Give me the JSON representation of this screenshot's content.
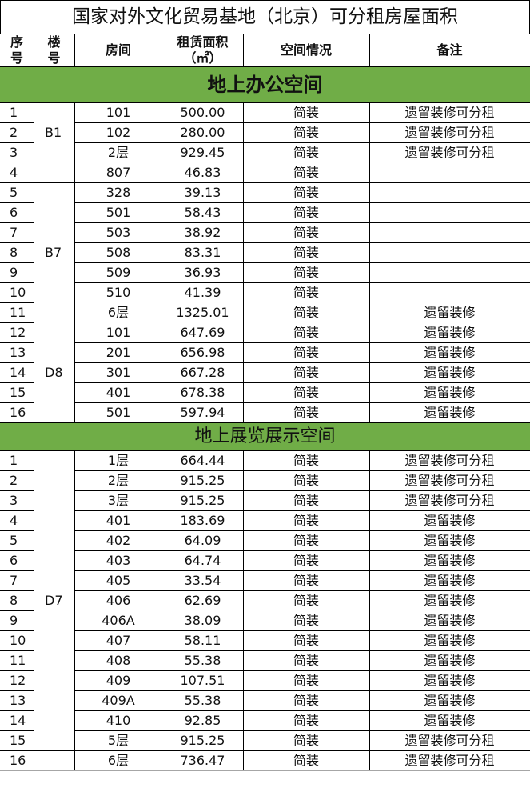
{
  "title": "国家对外文化贸易基地（北京）可分租房屋面积",
  "headers": {
    "seq": "序\n号",
    "building": "楼\n号",
    "room": "房间",
    "area": "租赁面积\n（㎡）",
    "space": "空间情况",
    "remark": "备注"
  },
  "sections": [
    {
      "name": "地上办公空间",
      "rows": [
        [
          "1",
          "",
          "101",
          "500.00",
          "简装",
          "遗留装修可分租"
        ],
        [
          "2",
          "B1",
          "102",
          "280.00",
          "简装",
          "遗留装修可分租"
        ],
        [
          "3",
          "",
          "2层",
          "929.45",
          "简装",
          "遗留装修可分租"
        ],
        [
          "4",
          "",
          "807",
          "46.83",
          "简装",
          ""
        ],
        [
          "5",
          "",
          "328",
          "39.13",
          "简装",
          ""
        ],
        [
          "6",
          "",
          "501",
          "58.43",
          "简装",
          ""
        ],
        [
          "7",
          "",
          "503",
          "38.92",
          "简装",
          ""
        ],
        [
          "8",
          "B7",
          "508",
          "83.31",
          "简装",
          ""
        ],
        [
          "9",
          "",
          "509",
          "36.93",
          "简装",
          ""
        ],
        [
          "10",
          "",
          "510",
          "41.39",
          "简装",
          ""
        ],
        [
          "11",
          "",
          "6层",
          "1325.01",
          "简装",
          "遗留装修"
        ],
        [
          "12",
          "",
          "101",
          "647.69",
          "简装",
          "遗留装修"
        ],
        [
          "13",
          "",
          "201",
          "656.98",
          "简装",
          "遗留装修"
        ],
        [
          "14",
          "D8",
          "301",
          "667.28",
          "简装",
          "遗留装修"
        ],
        [
          "15",
          "",
          "401",
          "678.38",
          "简装",
          "遗留装修"
        ],
        [
          "16",
          "",
          "501",
          "597.94",
          "简装",
          "遗留装修"
        ]
      ]
    },
    {
      "name": "地上展览展示空间",
      "rows": [
        [
          "1",
          "",
          "1层",
          "664.44",
          "简装",
          "遗留装修可分租"
        ],
        [
          "2",
          "",
          "2层",
          "915.25",
          "简装",
          "遗留装修可分租"
        ],
        [
          "3",
          "",
          "3层",
          "915.25",
          "简装",
          "遗留装修可分租"
        ],
        [
          "4",
          "",
          "401",
          "183.69",
          "简装",
          "遗留装修"
        ],
        [
          "5",
          "",
          "402",
          "64.09",
          "简装",
          "遗留装修"
        ],
        [
          "6",
          "",
          "403",
          "64.74",
          "简装",
          "遗留装修"
        ],
        [
          "7",
          "",
          "405",
          "33.54",
          "简装",
          "遗留装修"
        ],
        [
          "8",
          "D7",
          "406",
          "62.69",
          "简装",
          "遗留装修"
        ],
        [
          "9",
          "",
          "406A",
          "38.09",
          "简装",
          "遗留装修"
        ],
        [
          "10",
          "",
          "407",
          "58.11",
          "简装",
          "遗留装修"
        ],
        [
          "11",
          "",
          "408",
          "55.38",
          "简装",
          "遗留装修"
        ],
        [
          "12",
          "",
          "409",
          "107.51",
          "简装",
          "遗留装修"
        ],
        [
          "13",
          "",
          "409A",
          "55.38",
          "简装",
          "遗留装修"
        ],
        [
          "14",
          "",
          "410",
          "92.85",
          "简装",
          "遗留装修"
        ],
        [
          "15",
          "",
          "5层",
          "915.25",
          "简装",
          "遗留装修可分租"
        ],
        [
          "16",
          "",
          "6层",
          "736.47",
          "简装",
          "遗留装修可分租"
        ]
      ]
    }
  ]
}
